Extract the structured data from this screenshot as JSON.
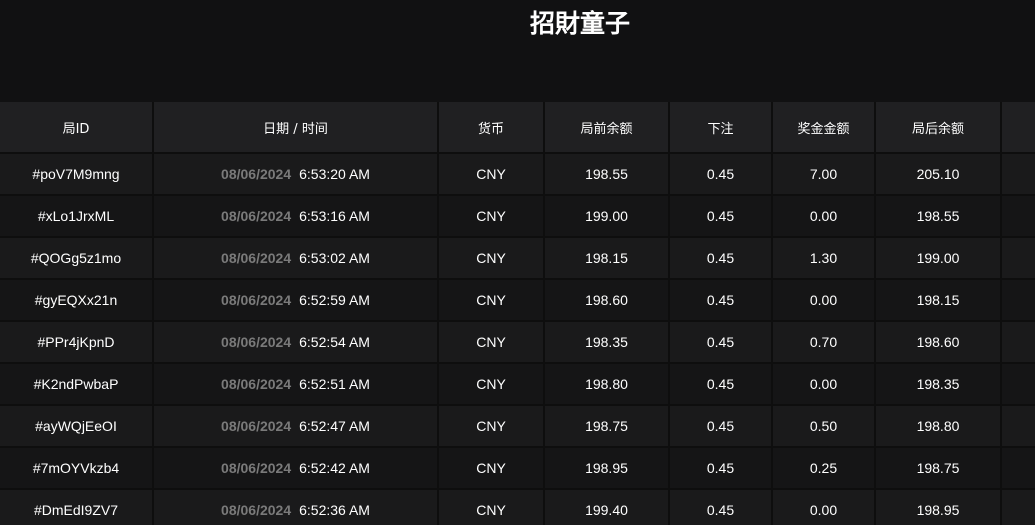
{
  "title": "招財童子",
  "columns": [
    "局ID",
    "日期 / 时间",
    "货币",
    "局前余额",
    "下注",
    "奖金金额",
    "局后余额",
    ""
  ],
  "rows": [
    {
      "id": "#poV7M9mng",
      "date": "08/06/2024",
      "time": "6:53:20 AM",
      "currency": "CNY",
      "before": "198.55",
      "bet": "0.45",
      "win": "7.00",
      "after": "205.10"
    },
    {
      "id": "#xLo1JrxML",
      "date": "08/06/2024",
      "time": "6:53:16 AM",
      "currency": "CNY",
      "before": "199.00",
      "bet": "0.45",
      "win": "0.00",
      "after": "198.55"
    },
    {
      "id": "#QOGg5z1mo",
      "date": "08/06/2024",
      "time": "6:53:02 AM",
      "currency": "CNY",
      "before": "198.15",
      "bet": "0.45",
      "win": "1.30",
      "after": "199.00"
    },
    {
      "id": "#gyEQXx21n",
      "date": "08/06/2024",
      "time": "6:52:59 AM",
      "currency": "CNY",
      "before": "198.60",
      "bet": "0.45",
      "win": "0.00",
      "after": "198.15"
    },
    {
      "id": "#PPr4jKpnD",
      "date": "08/06/2024",
      "time": "6:52:54 AM",
      "currency": "CNY",
      "before": "198.35",
      "bet": "0.45",
      "win": "0.70",
      "after": "198.60"
    },
    {
      "id": "#K2ndPwbaP",
      "date": "08/06/2024",
      "time": "6:52:51 AM",
      "currency": "CNY",
      "before": "198.80",
      "bet": "0.45",
      "win": "0.00",
      "after": "198.35"
    },
    {
      "id": "#ayWQjEeOI",
      "date": "08/06/2024",
      "time": "6:52:47 AM",
      "currency": "CNY",
      "before": "198.75",
      "bet": "0.45",
      "win": "0.50",
      "after": "198.80"
    },
    {
      "id": "#7mOYVkzb4",
      "date": "08/06/2024",
      "time": "6:52:42 AM",
      "currency": "CNY",
      "before": "198.95",
      "bet": "0.45",
      "win": "0.25",
      "after": "198.75"
    },
    {
      "id": "#DmEdI9ZV7",
      "date": "08/06/2024",
      "time": "6:52:36 AM",
      "currency": "CNY",
      "before": "199.40",
      "bet": "0.45",
      "win": "0.00",
      "after": "198.95"
    }
  ]
}
